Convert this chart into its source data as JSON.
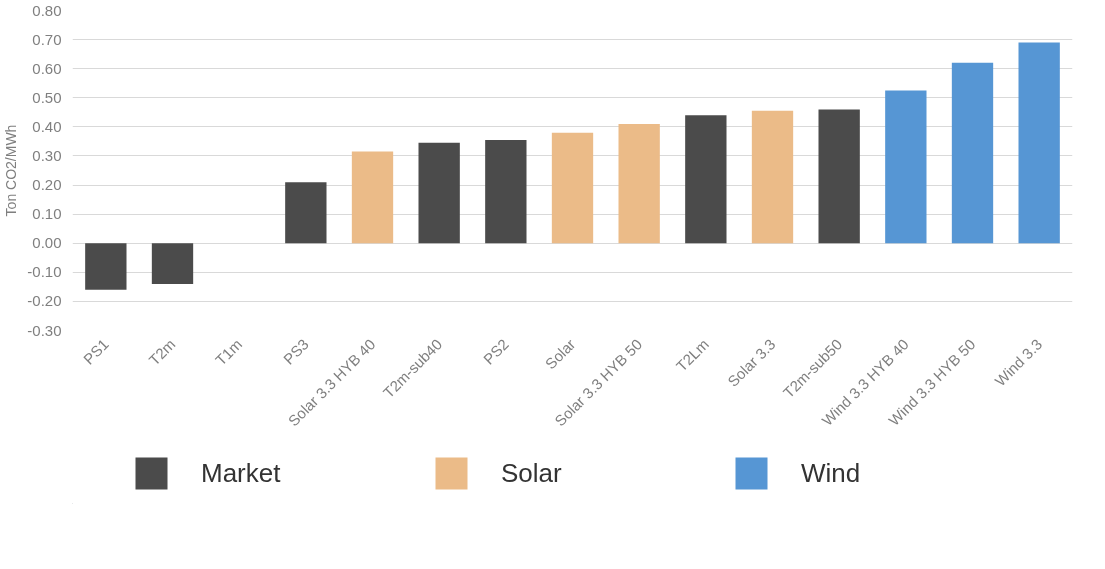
{
  "chart_data": {
    "type": "bar",
    "ylabel": "Ton CO2/MWh",
    "categories": [
      "PS1",
      "T2m",
      "T1m",
      "PS3",
      "Solar 3.3 HYB 40",
      "T2m-sub40",
      "PS2",
      "Solar",
      "Solar 3.3 HYB 50",
      "T2Lm",
      "Solar 3.3",
      "T2m-sub50",
      "Wind 3.3 HYB 40",
      "Wind 3.3 HYB 50",
      "Wind 3.3"
    ],
    "series": [
      {
        "name": "Market",
        "color": "#4b4b4b",
        "values": [
          -0.16,
          -0.14,
          0,
          0.21,
          null,
          0.345,
          0.355,
          null,
          null,
          0.44,
          null,
          0.46,
          null,
          null,
          null
        ]
      },
      {
        "name": "Solar",
        "color": "#ebbb88",
        "values": [
          null,
          null,
          null,
          null,
          0.315,
          null,
          null,
          0.38,
          0.41,
          null,
          0.455,
          null,
          null,
          null,
          null
        ]
      },
      {
        "name": "Wind",
        "color": "#5696d4",
        "values": [
          null,
          null,
          null,
          null,
          null,
          null,
          null,
          null,
          null,
          null,
          null,
          null,
          0.525,
          0.62,
          0.69
        ]
      }
    ],
    "ylim": [
      -0.3,
      0.8
    ],
    "yticks": [
      {
        "value": -0.3,
        "label": "-0.30"
      },
      {
        "value": -0.2,
        "label": "-0.20"
      },
      {
        "value": -0.1,
        "label": "-0.10"
      },
      {
        "value": 0,
        "label": "0.00"
      },
      {
        "value": 0.1,
        "label": "0.10"
      },
      {
        "value": 0.2,
        "label": "0.20"
      },
      {
        "value": 0.3,
        "label": "0.30"
      },
      {
        "value": 0.4,
        "label": "0.40"
      },
      {
        "value": 0.5,
        "label": "0.50"
      },
      {
        "value": 0.6,
        "label": "0.60"
      },
      {
        "value": 0.7,
        "label": "0.70"
      },
      {
        "value": 0.8,
        "label": "0.80"
      }
    ],
    "grid": "y",
    "legend": "bottom"
  }
}
